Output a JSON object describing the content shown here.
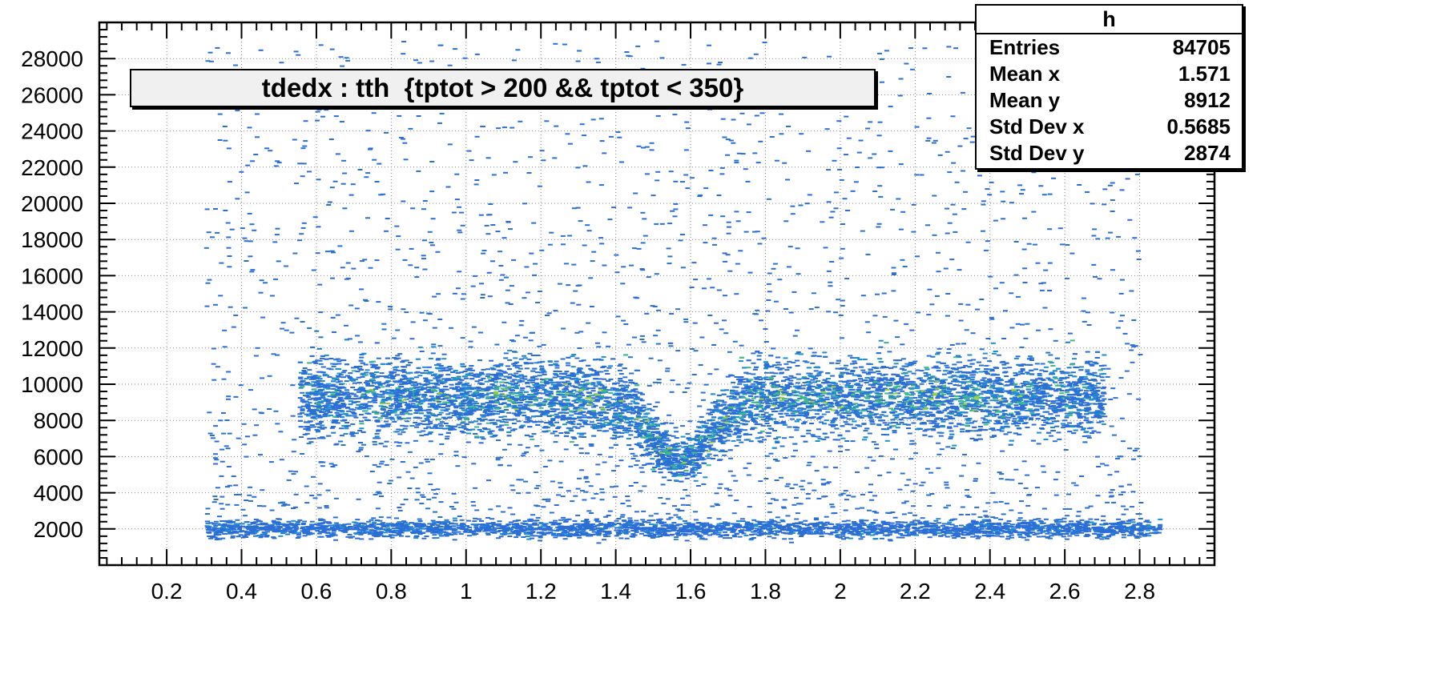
{
  "chart_data": {
    "type": "heatmap",
    "title": "tdedx : tth  {tptot > 200 && tptot < 350}",
    "xlabel": "",
    "ylabel": "",
    "xlim": [
      0.02,
      3.0
    ],
    "ylim": [
      0,
      30000
    ],
    "x_ticks": [
      0.2,
      0.4,
      0.6,
      0.8,
      1,
      1.2,
      1.4,
      1.6,
      1.8,
      2,
      2.2,
      2.4,
      2.6,
      2.8
    ],
    "x_tick_labels": [
      "0.2",
      "0.4",
      "0.6",
      "0.8",
      "1",
      "1.2",
      "1.4",
      "1.6",
      "1.8",
      "2",
      "2.2",
      "2.4",
      "2.6",
      "2.8"
    ],
    "y_ticks": [
      2000,
      4000,
      6000,
      8000,
      10000,
      12000,
      14000,
      16000,
      18000,
      20000,
      22000,
      24000,
      26000,
      28000
    ],
    "y_tick_labels": [
      "2000",
      "4000",
      "6000",
      "8000",
      "10000",
      "12000",
      "14000",
      "16000",
      "18000",
      "20000",
      "22000",
      "24000",
      "26000",
      "28000"
    ],
    "grid": true,
    "colors": {
      "low": "#2b6fd6",
      "mid": "#1f8fd0",
      "high": "#3fb88a",
      "peak": "#9ad13a"
    },
    "bands": [
      {
        "x_range": [
          0.3,
          2.85
        ],
        "y_center": 2000,
        "y_sigma": 250
      },
      {
        "x_range": [
          0.55,
          2.7
        ],
        "y_center": 9300,
        "y_sigma": 1100,
        "dip_x": 1.57,
        "dip_y": 5800,
        "dip_width": 0.11
      }
    ],
    "stats": {
      "name": "h",
      "rows": [
        {
          "label": "Entries",
          "value": "84705"
        },
        {
          "label": "Mean x",
          "value": "1.571"
        },
        {
          "label": "Mean y",
          "value": "8912"
        },
        {
          "label": "Std Dev x",
          "value": "0.5685"
        },
        {
          "label": "Std Dev y",
          "value": "2874"
        }
      ]
    }
  }
}
